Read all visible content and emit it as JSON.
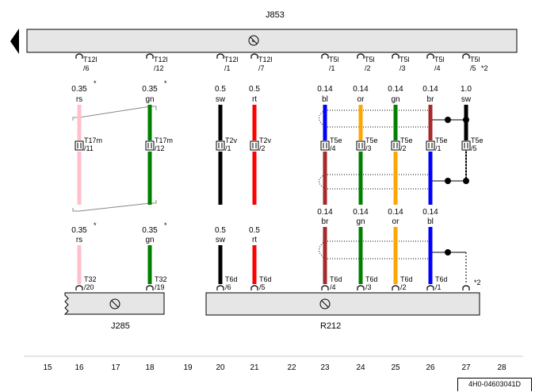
{
  "components": {
    "top": "J853",
    "bottom_left": "J285",
    "bottom_right": "R212"
  },
  "ground_symbol": "ground-icon",
  "colors": {
    "rs": "#ffc0cb",
    "gn": "#008000",
    "sw": "#000000",
    "rt": "#ff0000",
    "bl": "#0000ff",
    "or": "#ffa500",
    "br": "#a52a2a"
  },
  "top_wires": [
    {
      "col": "16",
      "conn": "T12l",
      "pin": "/6",
      "size": "0.35",
      "color": "rs",
      "mark": "*"
    },
    {
      "col": "18",
      "conn": "T12l",
      "pin": "/12",
      "size": "0.35",
      "color": "gn",
      "mark": "*"
    },
    {
      "col": "20",
      "conn": "T12l",
      "pin": "/1",
      "size": "0.5",
      "color": "sw",
      "mark": ""
    },
    {
      "col": "21",
      "conn": "T12l",
      "pin": "/7",
      "size": "0.5",
      "color": "rt",
      "mark": ""
    },
    {
      "col": "23",
      "conn": "T5l",
      "pin": "/1",
      "size": "0.14",
      "color": "bl",
      "mark": ""
    },
    {
      "col": "24",
      "conn": "T5l",
      "pin": "/2",
      "size": "0.14",
      "color": "or",
      "mark": ""
    },
    {
      "col": "25",
      "conn": "T5l",
      "pin": "/3",
      "size": "0.14",
      "color": "gn",
      "mark": ""
    },
    {
      "col": "26",
      "conn": "T5l",
      "pin": "/4",
      "size": "0.14",
      "color": "br",
      "mark": ""
    },
    {
      "col": "27",
      "conn": "T5l",
      "pin": "/5",
      "size": "1.0",
      "color": "sw",
      "mark": "*2"
    }
  ],
  "middle_connectors": [
    {
      "conn": "T17m",
      "pin": "/11"
    },
    {
      "conn": "T17m",
      "pin": "/12"
    },
    {
      "conn": "T2v",
      "pin": "/1"
    },
    {
      "conn": "T2v",
      "pin": "/2"
    },
    {
      "conn": "T5e",
      "pin": "/4"
    },
    {
      "conn": "T5e",
      "pin": "/3"
    },
    {
      "conn": "T5e",
      "pin": "/2"
    },
    {
      "conn": "T5e",
      "pin": "/1"
    },
    {
      "conn": "T5e",
      "pin": "/5"
    }
  ],
  "bottom_wires": [
    {
      "col": "16",
      "conn": "T32",
      "pin": "/20",
      "size": "0.35",
      "color": "rs",
      "mark": "*"
    },
    {
      "col": "18",
      "conn": "T32",
      "pin": "/19",
      "size": "0.35",
      "color": "gn",
      "mark": "*"
    },
    {
      "col": "20",
      "conn": "T6d",
      "pin": "/6",
      "size": "0.5",
      "color": "sw",
      "mark": ""
    },
    {
      "col": "21",
      "conn": "T6d",
      "pin": "/5",
      "size": "0.5",
      "color": "rt",
      "mark": ""
    },
    {
      "col": "23",
      "conn": "T6d",
      "pin": "/4",
      "size": "0.14",
      "color": "br",
      "mark": ""
    },
    {
      "col": "24",
      "conn": "T6d",
      "pin": "/3",
      "size": "0.14",
      "color": "gn",
      "mark": ""
    },
    {
      "col": "25",
      "conn": "T6d",
      "pin": "/2",
      "size": "0.14",
      "color": "or",
      "mark": ""
    },
    {
      "col": "26",
      "conn": "T6d",
      "pin": "/1",
      "size": "0.14",
      "color": "bl",
      "mark": ""
    }
  ],
  "shield_note": "*2",
  "columns": [
    "15",
    "16",
    "17",
    "18",
    "19",
    "20",
    "21",
    "22",
    "23",
    "24",
    "25",
    "26",
    "27",
    "28"
  ],
  "stamp": "4H0-04603041D"
}
